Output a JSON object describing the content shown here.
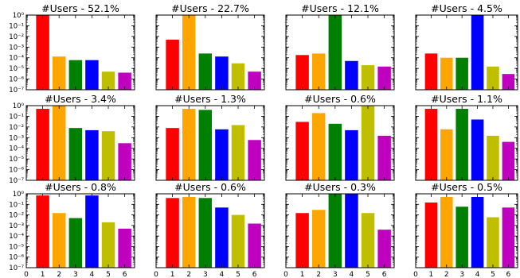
{
  "chart_data": {
    "type": "bar",
    "layout": "3x4 grid of subplots",
    "yscale": "log",
    "ylim": [
      1e-07,
      1
    ],
    "xlim": [
      0,
      6.6
    ],
    "x": [
      1,
      2,
      3,
      4,
      5,
      6
    ],
    "x_tick_labels": [
      "0",
      "1",
      "2",
      "3",
      "4",
      "5",
      "6"
    ],
    "y_tick_labels": [
      "10⁻⁷",
      "10⁻⁶",
      "10⁻⁵",
      "10⁻⁴",
      "10⁻³",
      "10⁻²",
      "10⁻¹",
      "10⁰"
    ],
    "bar_colors": [
      "#ff0000",
      "#ffa500",
      "#008000",
      "#0000ff",
      "#bfbf00",
      "#bf00bf"
    ],
    "subplots": [
      {
        "title": "#Users - 52.1%",
        "values": [
          1,
          0.00013,
          6e-05,
          6e-05,
          5e-06,
          4e-06
        ]
      },
      {
        "title": "#Users - 22.7%",
        "values": [
          0.005,
          1,
          0.00025,
          0.00013,
          3e-05,
          5e-06
        ]
      },
      {
        "title": "#Users - 12.1%",
        "values": [
          0.00018,
          0.00025,
          1,
          5e-05,
          2e-05,
          1.5e-05
        ]
      },
      {
        "title": "#Users - 4.5%",
        "values": [
          0.00025,
          0.0001,
          0.0001,
          1,
          1.5e-05,
          3e-06
        ]
      },
      {
        "title": "#Users - 3.4%",
        "values": [
          0.5,
          1,
          0.008,
          0.005,
          0.004,
          0.0003
        ]
      },
      {
        "title": "#Users - 1.3%",
        "values": [
          0.008,
          0.5,
          0.4,
          0.006,
          0.015,
          0.0006
        ]
      },
      {
        "title": "#Users - 0.6%",
        "values": [
          0.03,
          0.2,
          0.02,
          0.005,
          1,
          0.0015
        ]
      },
      {
        "title": "#Users - 1.1%",
        "values": [
          0.5,
          0.006,
          0.5,
          0.05,
          0.0015,
          0.0004
        ]
      },
      {
        "title": "#Users - 0.8%",
        "values": [
          0.7,
          0.015,
          0.005,
          0.7,
          0.002,
          0.0005
        ]
      },
      {
        "title": "#Users - 0.6%",
        "values": [
          0.4,
          0.5,
          0.4,
          0.05,
          0.01,
          0.0015
        ]
      },
      {
        "title": "#Users - 0.3%",
        "values": [
          0.015,
          0.03,
          1,
          1,
          0.015,
          0.0004
        ]
      },
      {
        "title": "#Users - 0.5%",
        "values": [
          0.15,
          0.5,
          0.06,
          0.5,
          0.006,
          0.05
        ]
      }
    ]
  }
}
